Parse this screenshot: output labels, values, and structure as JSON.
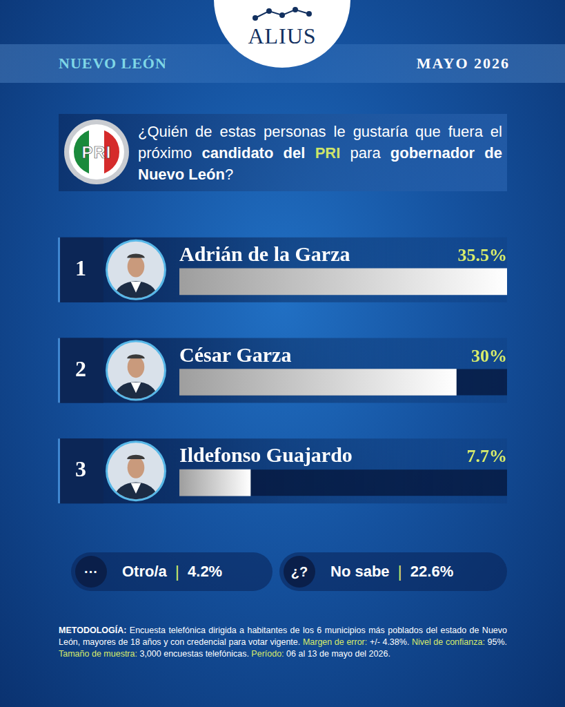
{
  "header": {
    "brand": "ALIUS",
    "region": "NUEVO LEÓN",
    "date": "MAYO 2026"
  },
  "question": {
    "logo_text": "PRI",
    "segments": [
      {
        "text": "¿Quién de estas personas le gustaría que fuera el próximo ",
        "style": "normal"
      },
      {
        "text": "candidato del ",
        "style": "bold"
      },
      {
        "text": "PRI",
        "style": "highlight"
      },
      {
        "text": " para ",
        "style": "normal"
      },
      {
        "text": "gobernador de Nuevo León",
        "style": "bold"
      },
      {
        "text": "?",
        "style": "normal"
      }
    ]
  },
  "chart_data": {
    "type": "bar",
    "orientation": "horizontal",
    "categories": [
      "Adrián de la Garza",
      "César Garza",
      "Ildefonso Guajardo"
    ],
    "ranks": [
      1,
      2,
      3
    ],
    "values": [
      35.5,
      30,
      7.7
    ],
    "value_labels": [
      "35.5%",
      "30%",
      "7.7%"
    ],
    "data_labels": true,
    "tick_labels": false,
    "grid": false,
    "xlim": [
      0,
      35.5
    ],
    "color": "#9e9e9e"
  },
  "other_answers": [
    {
      "icon": "···",
      "label": "Otro/a",
      "separator": "|",
      "value_label": "4.2%"
    },
    {
      "icon": "¿?",
      "label": "No sabe",
      "separator": "|",
      "value_label": "22.6%"
    }
  ],
  "methodology": [
    {
      "text": "METODOLOGÍA:",
      "style": "bold"
    },
    {
      "text": " Encuesta telefónica dirigida a habitantes de los 6 municipios más poblados del estado de Nuevo León, mayores de 18 años y con credencial para votar vigente. ",
      "style": "normal"
    },
    {
      "text": "Margen de error:",
      "style": "highlight"
    },
    {
      "text": " +/- 4.38%. ",
      "style": "normal"
    },
    {
      "text": "Nivel de confianza:",
      "style": "highlight"
    },
    {
      "text": " 95%. ",
      "style": "normal"
    },
    {
      "text": "Tamaño de muestra:",
      "style": "highlight"
    },
    {
      "text": " 3,000 encuestas telefónicas. ",
      "style": "normal"
    },
    {
      "text": "Período:",
      "style": "highlight"
    },
    {
      "text": " 06 al 13 de mayo del 2026.",
      "style": "normal"
    }
  ]
}
